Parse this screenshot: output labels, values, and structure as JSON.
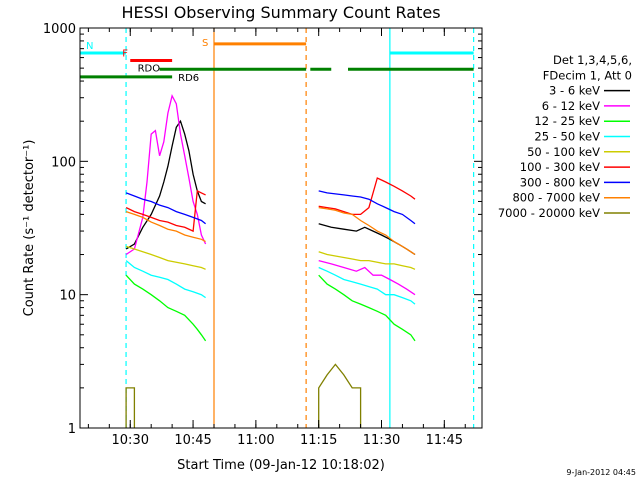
{
  "chart_data": {
    "type": "line",
    "title": "HESSI Observing Summary Count Rates",
    "xlabel": "Start Time (09-Jan-12 10:18:02)",
    "ylabel": "Count Rate (s⁻¹ detector⁻¹)",
    "y_scale": "log",
    "ylim": [
      1,
      1000
    ],
    "xlim_minutes": [
      0,
      96
    ],
    "x_ticks": [
      {
        "label": "10:30",
        "value": 12
      },
      {
        "label": "10:45",
        "value": 27
      },
      {
        "label": "11:00",
        "value": 42
      },
      {
        "label": "11:15",
        "value": 57
      },
      {
        "label": "11:30",
        "value": 72
      },
      {
        "label": "11:45",
        "value": 87
      }
    ],
    "y_ticks": [
      {
        "label": "1",
        "value": 1
      },
      {
        "label": "10",
        "value": 10
      },
      {
        "label": "100",
        "value": 100
      },
      {
        "label": "1000",
        "value": 1000
      }
    ],
    "legend_header": [
      "Det 1,3,4,5,6,",
      "FDecim 1, Att 0"
    ],
    "legend_position": "right",
    "timestamp": "9-Jan-2012 04:45",
    "series": [
      {
        "name": "3 - 6 keV",
        "color": "#000000",
        "segments": [
          [
            [
              11,
              22
            ],
            [
              13,
              24
            ],
            [
              15,
              32
            ],
            [
              17,
              40
            ],
            [
              19,
              55
            ],
            [
              20,
              70
            ],
            [
              21,
              92
            ],
            [
              22,
              130
            ],
            [
              23,
              180
            ],
            [
              24,
              200
            ],
            [
              25,
              160
            ],
            [
              26,
              120
            ],
            [
              27,
              80
            ],
            [
              28,
              60
            ],
            [
              29,
              50
            ],
            [
              30,
              48
            ]
          ],
          [
            [
              57,
              34
            ],
            [
              60,
              32
            ],
            [
              63,
              31
            ],
            [
              66,
              30
            ],
            [
              68,
              32
            ],
            [
              70,
              30
            ],
            [
              72,
              28
            ],
            [
              74,
              26
            ],
            [
              76,
              24
            ],
            [
              78,
              22
            ],
            [
              80,
              20
            ]
          ]
        ]
      },
      {
        "name": "6 - 12 keV",
        "color": "#ff00ff",
        "segments": [
          [
            [
              11,
              20
            ],
            [
              13,
              22
            ],
            [
              15,
              38
            ],
            [
              16,
              70
            ],
            [
              17,
              160
            ],
            [
              18,
              170
            ],
            [
              19,
              110
            ],
            [
              20,
              140
            ],
            [
              21,
              230
            ],
            [
              22,
              310
            ],
            [
              23,
              270
            ],
            [
              24,
              160
            ],
            [
              25,
              110
            ],
            [
              26,
              75
            ],
            [
              27,
              50
            ],
            [
              28,
              40
            ],
            [
              29,
              28
            ],
            [
              30,
              24
            ]
          ],
          [
            [
              57,
              18
            ],
            [
              60,
              17
            ],
            [
              63,
              16
            ],
            [
              66,
              15
            ],
            [
              68,
              16
            ],
            [
              70,
              14
            ],
            [
              72,
              14
            ],
            [
              74,
              13
            ],
            [
              76,
              12
            ],
            [
              78,
              11
            ],
            [
              80,
              10
            ]
          ]
        ]
      },
      {
        "name": "12 - 25 keV",
        "color": "#00ff00",
        "segments": [
          [
            [
              11,
              14
            ],
            [
              13,
              12
            ],
            [
              15,
              11
            ],
            [
              17,
              10
            ],
            [
              19,
              9
            ],
            [
              21,
              8
            ],
            [
              23,
              7.5
            ],
            [
              25,
              7
            ],
            [
              27,
              6
            ],
            [
              28,
              5.5
            ],
            [
              29,
              5
            ],
            [
              30,
              4.5
            ]
          ],
          [
            [
              57,
              14
            ],
            [
              59,
              12
            ],
            [
              61,
              11
            ],
            [
              63,
              10
            ],
            [
              65,
              9
            ],
            [
              67,
              8.5
            ],
            [
              69,
              8
            ],
            [
              71,
              7.5
            ],
            [
              73,
              7
            ],
            [
              75,
              6
            ],
            [
              77,
              5.5
            ],
            [
              79,
              5
            ],
            [
              80,
              4.5
            ]
          ]
        ]
      },
      {
        "name": "25 - 50 keV",
        "color": "#00ffff",
        "segments": [
          [
            [
              11,
              18
            ],
            [
              13,
              16
            ],
            [
              15,
              15
            ],
            [
              17,
              14
            ],
            [
              19,
              13.5
            ],
            [
              21,
              13
            ],
            [
              23,
              12
            ],
            [
              25,
              11
            ],
            [
              27,
              10.5
            ],
            [
              29,
              10
            ],
            [
              30,
              9.5
            ]
          ],
          [
            [
              57,
              16
            ],
            [
              59,
              15
            ],
            [
              61,
              14
            ],
            [
              63,
              13
            ],
            [
              65,
              12.5
            ],
            [
              67,
              12
            ],
            [
              69,
              11.5
            ],
            [
              71,
              11
            ],
            [
              73,
              10
            ],
            [
              75,
              10
            ],
            [
              77,
              9.5
            ],
            [
              79,
              9
            ],
            [
              80,
              8.5
            ]
          ]
        ]
      },
      {
        "name": "50 - 100 keV",
        "color": "#cccc00",
        "segments": [
          [
            [
              11,
              23
            ],
            [
              13,
              22
            ],
            [
              15,
              21
            ],
            [
              17,
              20
            ],
            [
              19,
              19
            ],
            [
              21,
              18
            ],
            [
              23,
              17.5
            ],
            [
              25,
              17
            ],
            [
              27,
              16.5
            ],
            [
              29,
              16
            ],
            [
              30,
              15.5
            ]
          ],
          [
            [
              57,
              21
            ],
            [
              59,
              20
            ],
            [
              61,
              19.5
            ],
            [
              63,
              19
            ],
            [
              65,
              18.5
            ],
            [
              67,
              18
            ],
            [
              69,
              18
            ],
            [
              71,
              17.5
            ],
            [
              73,
              17
            ],
            [
              75,
              17
            ],
            [
              77,
              16.5
            ],
            [
              79,
              16
            ],
            [
              80,
              15.5
            ]
          ]
        ]
      },
      {
        "name": "100 - 300 keV",
        "color": "#ff0000",
        "segments": [
          [
            [
              11,
              45
            ],
            [
              13,
              42
            ],
            [
              15,
              40
            ],
            [
              17,
              38
            ],
            [
              19,
              36
            ],
            [
              21,
              35
            ],
            [
              23,
              33
            ],
            [
              25,
              32
            ],
            [
              27,
              30
            ],
            [
              28,
              60
            ],
            [
              29,
              58
            ],
            [
              30,
              56
            ]
          ],
          [
            [
              57,
              46
            ],
            [
              59,
              45
            ],
            [
              61,
              44
            ],
            [
              63,
              42
            ],
            [
              65,
              40
            ],
            [
              67,
              40
            ],
            [
              69,
              45
            ],
            [
              71,
              75
            ],
            [
              73,
              70
            ],
            [
              75,
              65
            ],
            [
              77,
              60
            ],
            [
              79,
              55
            ],
            [
              80,
              52
            ]
          ]
        ]
      },
      {
        "name": "300 - 800 keV",
        "color": "#0000ff",
        "segments": [
          [
            [
              11,
              58
            ],
            [
              13,
              55
            ],
            [
              15,
              52
            ],
            [
              17,
              50
            ],
            [
              19,
              47
            ],
            [
              21,
              45
            ],
            [
              23,
              42
            ],
            [
              25,
              40
            ],
            [
              27,
              38
            ],
            [
              29,
              36
            ],
            [
              30,
              34
            ]
          ],
          [
            [
              57,
              60
            ],
            [
              59,
              58
            ],
            [
              61,
              57
            ],
            [
              63,
              56
            ],
            [
              65,
              55
            ],
            [
              67,
              54
            ],
            [
              69,
              52
            ],
            [
              71,
              48
            ],
            [
              73,
              45
            ],
            [
              75,
              42
            ],
            [
              77,
              40
            ],
            [
              79,
              36
            ],
            [
              80,
              34
            ]
          ]
        ]
      },
      {
        "name": "800 - 7000 keV",
        "color": "#ff8000",
        "segments": [
          [
            [
              11,
              42
            ],
            [
              13,
              40
            ],
            [
              15,
              38
            ],
            [
              17,
              35
            ],
            [
              19,
              33
            ],
            [
              21,
              31
            ],
            [
              23,
              30
            ],
            [
              25,
              28
            ],
            [
              27,
              27
            ],
            [
              29,
              26
            ],
            [
              30,
              25
            ]
          ],
          [
            [
              57,
              45
            ],
            [
              59,
              44
            ],
            [
              61,
              43
            ],
            [
              63,
              41
            ],
            [
              65,
              40
            ],
            [
              67,
              36
            ],
            [
              69,
              33
            ],
            [
              71,
              30
            ],
            [
              73,
              28
            ],
            [
              75,
              25
            ],
            [
              77,
              23
            ],
            [
              79,
              21
            ],
            [
              80,
              20
            ]
          ]
        ]
      },
      {
        "name": "7000 - 20000 keV",
        "color": "#808000",
        "segments": [
          [
            [
              11,
              1
            ],
            [
              11,
              2
            ],
            [
              13,
              2
            ],
            [
              13,
              1
            ]
          ],
          [
            [
              57,
              1
            ],
            [
              57,
              2
            ],
            [
              59,
              2.5
            ],
            [
              61,
              3
            ],
            [
              63,
              2.5
            ],
            [
              65,
              2
            ],
            [
              67,
              2
            ],
            [
              67,
              1
            ]
          ]
        ]
      }
    ],
    "state_bars": [
      {
        "label": "N",
        "color": "#00ffff",
        "y": 650,
        "segments": [
          [
            0,
            11
          ],
          [
            74,
            94
          ]
        ]
      },
      {
        "label": "S",
        "color": "#ff8000",
        "y": 760,
        "segments": [
          [
            32,
            54
          ]
        ]
      },
      {
        "label": "F",
        "color": "#ff0000",
        "y": 570,
        "segments": [
          [
            12,
            22
          ]
        ]
      },
      {
        "label": "RDO",
        "color": "#008000",
        "y": 490,
        "segments": [
          [
            19,
            54
          ],
          [
            55,
            60
          ],
          [
            64,
            94
          ]
        ]
      },
      {
        "label": "RD6",
        "color": "#008000",
        "y": 430,
        "segments": [
          [
            0,
            22
          ]
        ]
      }
    ],
    "vertical_markers": [
      {
        "x": 11,
        "color": "#00ffff",
        "dashed": true
      },
      {
        "x": 32,
        "color": "#ff8000",
        "dashed": false
      },
      {
        "x": 54,
        "color": "#ff8000",
        "dashed": true
      },
      {
        "x": 74,
        "color": "#00ffff",
        "dashed": false
      },
      {
        "x": 94,
        "color": "#00ffff",
        "dashed": true
      }
    ]
  }
}
